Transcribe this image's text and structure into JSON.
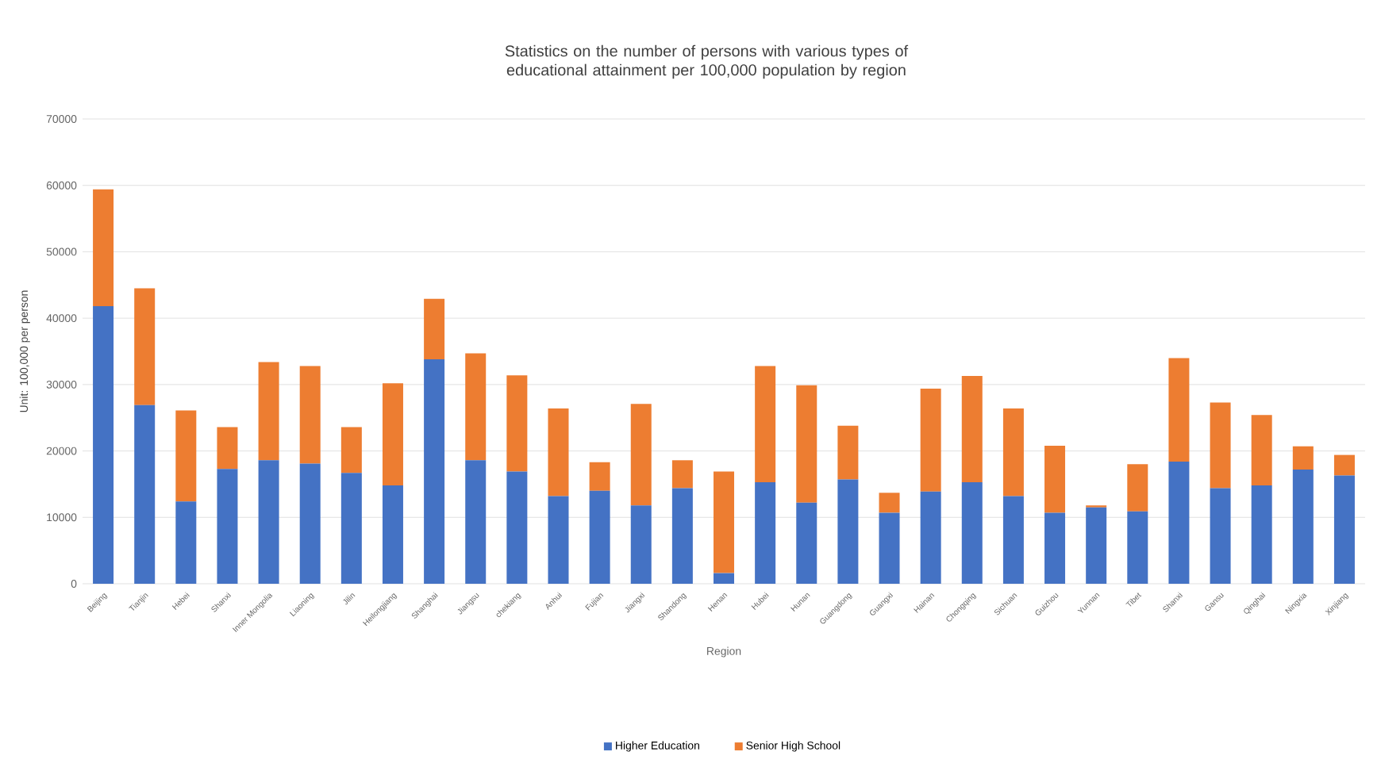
{
  "chart_data": {
    "type": "bar",
    "stacked": true,
    "title": "Statistics on the number of persons with various types of educational attainment per 100,000 population by region",
    "xlabel": "Region",
    "ylabel": "Unit: 100,000 per person",
    "categories": [
      "Beijing",
      "Tianjin",
      "Hebei",
      "Shanxi",
      "Inner Mongolia",
      "Liaoning",
      "Jilin",
      "Heilongjiang",
      "Shanghai",
      "Jiangsu",
      "chekiang",
      "Anhui",
      "Fujian",
      "Jiangxi",
      "Shandong",
      "Henan",
      "Hubei",
      "Hunan",
      "Guangdong",
      "Guangxi",
      "Hainan",
      "Chongqing",
      "Sichuan",
      "Guizhou",
      "Yunnan",
      "Tibet",
      "Shanxi",
      "Gansu",
      "Qinghai",
      "Ningxia",
      "Xinjiang"
    ],
    "series": [
      {
        "name": "Higher Education",
        "color": "#4472c4",
        "values": [
          41800,
          26900,
          12400,
          17300,
          18600,
          18100,
          16700,
          14800,
          33800,
          18600,
          16900,
          13200,
          14000,
          11800,
          14400,
          1600,
          15300,
          12200,
          15700,
          10700,
          13900,
          15300,
          13200,
          10700,
          11500,
          10900,
          18400,
          14400,
          14800,
          17200,
          16300
        ]
      },
      {
        "name": "Senior High School",
        "color": "#ed7d31",
        "values": [
          17600,
          17600,
          13700,
          6300,
          14800,
          14700,
          6900,
          15400,
          9100,
          16100,
          14500,
          13200,
          4300,
          15300,
          4200,
          15300,
          17500,
          17700,
          8100,
          3000,
          15500,
          16000,
          13200,
          10100,
          300,
          7100,
          15600,
          12900,
          10600,
          3500,
          3100
        ]
      }
    ],
    "ylim": [
      0,
      70000
    ],
    "yticks": [
      0,
      10000,
      20000,
      30000,
      40000,
      50000,
      60000,
      70000
    ],
    "grid": "y",
    "legend": "bottom"
  }
}
